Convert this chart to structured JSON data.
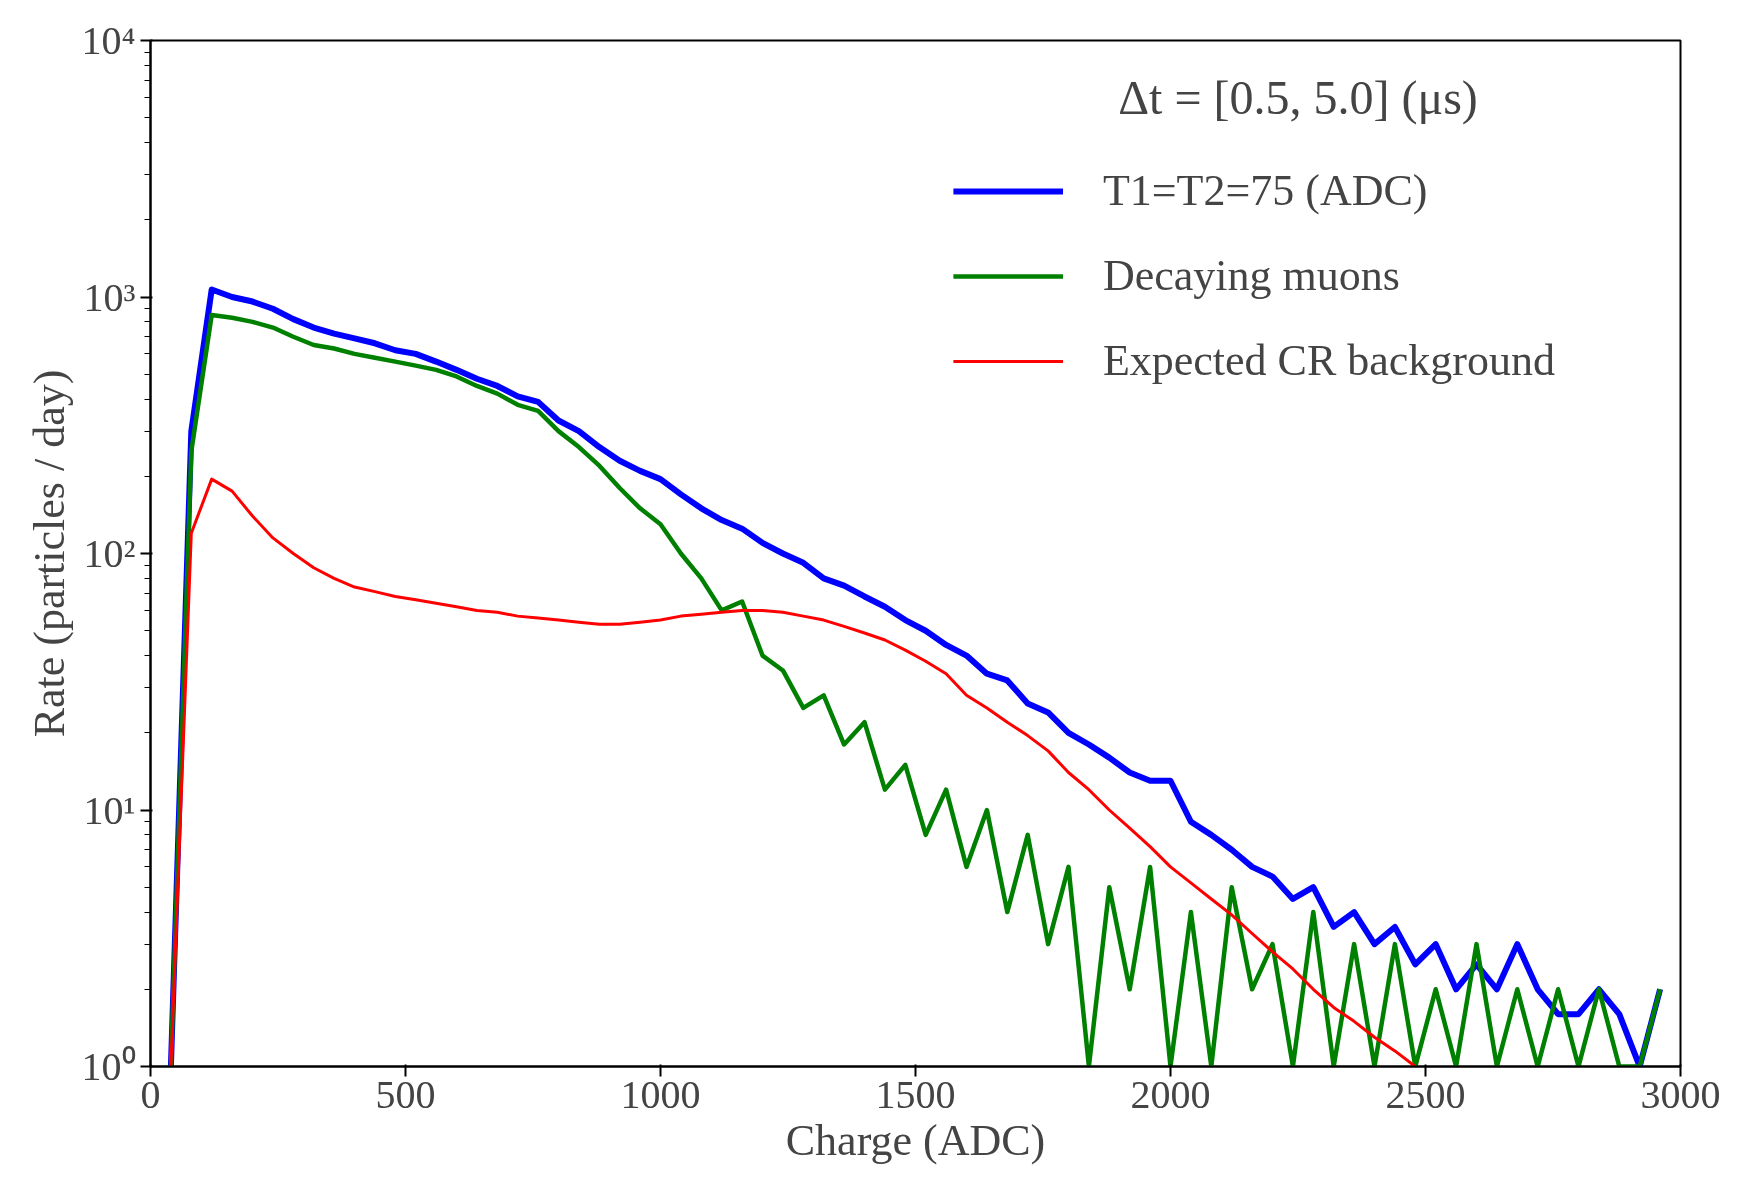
{
  "chart_data": {
    "type": "line",
    "xlabel": "Charge (ADC)",
    "ylabel": "Rate (particles / day)",
    "annotations": [
      "Δt = [0.5, 5.0] (μs)"
    ],
    "log": "y",
    "grid": false,
    "legend": "top right",
    "line_style": "solid",
    "marker": "none",
    "xlim": [
      0,
      3000
    ],
    "xticks": [
      0,
      500,
      1000,
      1500,
      2000,
      2500,
      3000
    ],
    "ylim": [
      1,
      10000
    ],
    "yticks": [
      {
        "value": 1,
        "label": "10⁰"
      },
      {
        "value": 10,
        "label": "10¹"
      },
      {
        "value": 100,
        "label": "10²"
      },
      {
        "value": 1000,
        "label": "10³"
      },
      {
        "value": 10000,
        "label": "10⁴"
      }
    ],
    "x": [
      40,
      80,
      120,
      160,
      200,
      240,
      280,
      320,
      360,
      400,
      440,
      480,
      520,
      560,
      600,
      640,
      680,
      720,
      760,
      800,
      840,
      880,
      920,
      960,
      1000,
      1040,
      1080,
      1120,
      1160,
      1200,
      1240,
      1280,
      1320,
      1360,
      1400,
      1440,
      1480,
      1520,
      1560,
      1600,
      1640,
      1680,
      1720,
      1760,
      1800,
      1840,
      1880,
      1920,
      1960,
      2000,
      2040,
      2080,
      2120,
      2160,
      2200,
      2240,
      2280,
      2320,
      2360,
      2400,
      2440,
      2480,
      2520,
      2560,
      2600,
      2640,
      2680,
      2720,
      2760,
      2800,
      2840,
      2880,
      2920,
      2960
    ],
    "series": [
      {
        "name": "T1=T2=75 (ADC)",
        "color": "#0000ff",
        "values": [
          1,
          300,
          1070,
          1000,
          960,
          900,
          820,
          760,
          720,
          690,
          660,
          620,
          600,
          560,
          520,
          480,
          450,
          410,
          390,
          330,
          300,
          260,
          230,
          210,
          195,
          170,
          150,
          135,
          125,
          110,
          100,
          92,
          80,
          75,
          68,
          62,
          55,
          50,
          44,
          40,
          34,
          32,
          26,
          24,
          20,
          18,
          16,
          14,
          13,
          13,
          9,
          8,
          7,
          6,
          5.5,
          4.5,
          5,
          3.5,
          4,
          3,
          3.5,
          2.5,
          3,
          2,
          2.5,
          2,
          3,
          2,
          1.6,
          1.6,
          2,
          1.6,
          1,
          2
        ]
      },
      {
        "name": "Decaying muons",
        "color": "#008000",
        "values": [
          1,
          250,
          850,
          830,
          800,
          760,
          700,
          650,
          630,
          600,
          580,
          560,
          540,
          520,
          490,
          450,
          420,
          380,
          360,
          300,
          260,
          220,
          180,
          150,
          130,
          100,
          80,
          60,
          65,
          40,
          35,
          25,
          28,
          18,
          22,
          12,
          15,
          8,
          12,
          6,
          10,
          4,
          8,
          3,
          6,
          1,
          5,
          2,
          6,
          1,
          4,
          1,
          5,
          2,
          3,
          1,
          4,
          1,
          3,
          1,
          3,
          1,
          2,
          1,
          3,
          1,
          2,
          1,
          2,
          1,
          2,
          1,
          1,
          2
        ]
      },
      {
        "name": "Expected CR background",
        "color": "#ff0000",
        "values": [
          1,
          120,
          195,
          175,
          140,
          115,
          100,
          88,
          80,
          74,
          71,
          68,
          66,
          64,
          62,
          60,
          59,
          57,
          56,
          55,
          54,
          53,
          53,
          54,
          55,
          57,
          58,
          59,
          60,
          60,
          59,
          57,
          55,
          52,
          49,
          46,
          42,
          38,
          34,
          28,
          25,
          22,
          19.5,
          17,
          14,
          12,
          10,
          8.5,
          7.2,
          6,
          5.2,
          4.5,
          3.9,
          3.3,
          2.8,
          2.4,
          2.0,
          1.7,
          1.5,
          1.3,
          1.15,
          1.0,
          null,
          null,
          null,
          null,
          null,
          null,
          null,
          null,
          null,
          null,
          null,
          null
        ]
      }
    ]
  }
}
